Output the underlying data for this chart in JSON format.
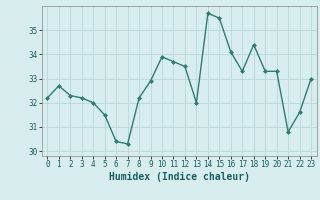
{
  "x": [
    0,
    1,
    2,
    3,
    4,
    5,
    6,
    7,
    8,
    9,
    10,
    11,
    12,
    13,
    14,
    15,
    16,
    17,
    18,
    19,
    20,
    21,
    22,
    23
  ],
  "y": [
    32.2,
    32.7,
    32.3,
    32.2,
    32.0,
    31.5,
    30.4,
    30.3,
    32.2,
    32.9,
    33.9,
    33.7,
    33.5,
    32.0,
    35.7,
    35.5,
    34.1,
    33.3,
    34.4,
    33.3,
    33.3,
    30.8,
    31.6,
    33.0
  ],
  "line_color": "#2e7d6e",
  "marker": "D",
  "marker_size": 2.0,
  "line_width": 1.0,
  "xlabel": "Humidex (Indice chaleur)",
  "ylim": [
    29.8,
    36.0
  ],
  "xlim": [
    -0.5,
    23.5
  ],
  "yticks": [
    30,
    31,
    32,
    33,
    34,
    35
  ],
  "xticks": [
    0,
    1,
    2,
    3,
    4,
    5,
    6,
    7,
    8,
    9,
    10,
    11,
    12,
    13,
    14,
    15,
    16,
    17,
    18,
    19,
    20,
    21,
    22,
    23
  ],
  "bg_color": "#d8eeee",
  "grid_color": "#b8d8d8",
  "tick_fontsize": 5.5,
  "xlabel_fontsize": 7
}
